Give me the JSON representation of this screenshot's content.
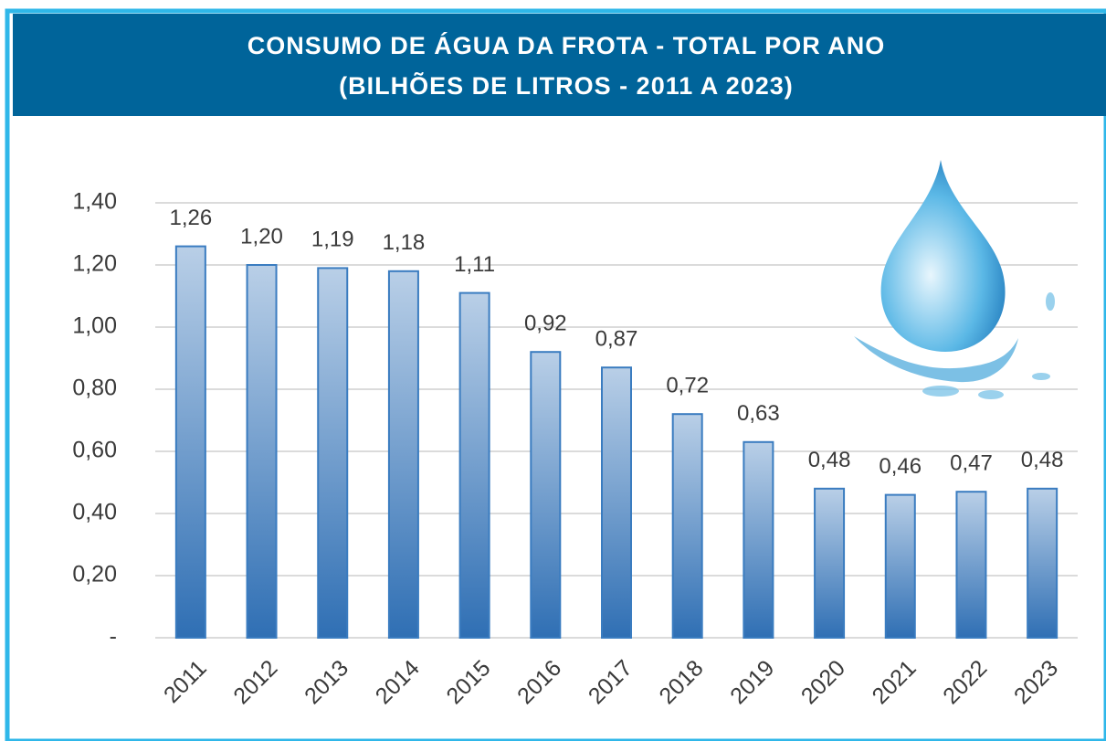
{
  "chart_data": {
    "type": "bar",
    "title": [
      "CONSUMO DE ÁGUA DA FROTA - TOTAL POR ANO",
      "(BILHÕES DE LITROS - 2011 A 2023)"
    ],
    "categories": [
      "2011",
      "2012",
      "2013",
      "2014",
      "2015",
      "2016",
      "2017",
      "2018",
      "2019",
      "2020",
      "2021",
      "2022",
      "2023"
    ],
    "values": [
      1.26,
      1.2,
      1.19,
      1.18,
      1.11,
      0.92,
      0.87,
      0.72,
      0.63,
      0.48,
      0.46,
      0.47,
      0.48
    ],
    "value_labels": [
      "1,26",
      "1,20",
      "1,19",
      "1,18",
      "1,11",
      "0,92",
      "0,87",
      "0,72",
      "0,63",
      "0,48",
      "0,46",
      "0,47",
      "0,48"
    ],
    "color": "#3a7cc0",
    "ylim": [
      0,
      1.4
    ],
    "yticks": [
      {
        "value": 0,
        "label": "-"
      },
      {
        "value": 0.2,
        "label": "0,20"
      },
      {
        "value": 0.4,
        "label": "0,40"
      },
      {
        "value": 0.6,
        "label": "0,60"
      },
      {
        "value": 0.8,
        "label": "0,80"
      },
      {
        "value": 1.0,
        "label": "1,00"
      },
      {
        "value": 1.2,
        "label": "1,20"
      },
      {
        "value": 1.4,
        "label": "1,40"
      }
    ],
    "grid": true
  }
}
